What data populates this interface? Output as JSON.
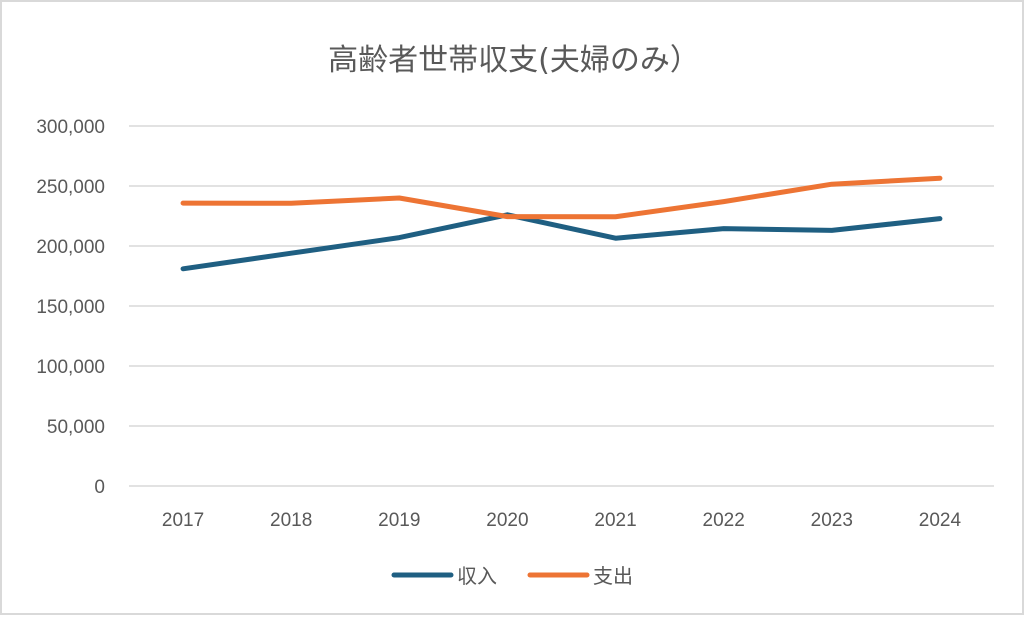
{
  "chart_data": {
    "type": "line",
    "title": "高齢者世帯収支(夫婦のみ）",
    "xlabel": "",
    "ylabel": "",
    "categories": [
      "2017",
      "2018",
      "2019",
      "2020",
      "2021",
      "2022",
      "2023",
      "2024"
    ],
    "ylim": [
      0,
      300000
    ],
    "yticks": [
      0,
      50000,
      100000,
      150000,
      200000,
      250000,
      300000
    ],
    "ytick_labels": [
      "0",
      "50,000",
      "100,000",
      "150,000",
      "200,000",
      "250,000",
      "300,000"
    ],
    "grid": true,
    "legend_position": "bottom",
    "series": [
      {
        "name": "収入",
        "color": "#1f5f82",
        "values": [
          181000,
          194000,
          207000,
          226000,
          206500,
          214500,
          213000,
          222800
        ]
      },
      {
        "name": "支出",
        "color": "#ed7434",
        "values": [
          235700,
          235600,
          240000,
          224500,
          224400,
          237000,
          251500,
          256500
        ]
      }
    ]
  }
}
